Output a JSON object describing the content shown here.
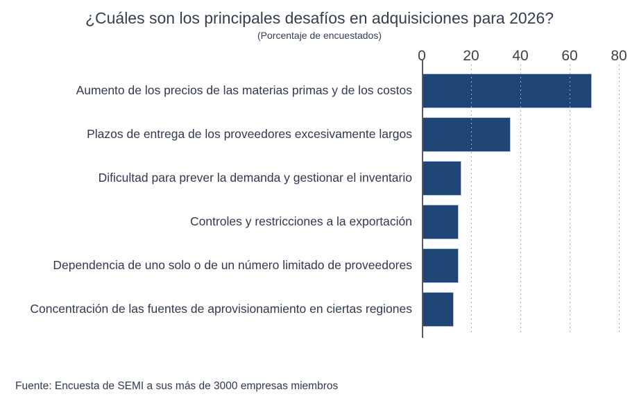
{
  "title": "¿Cuáles son los principales desafíos en adquisiciones para 2026?",
  "subtitle": "(Porcentaje de encuestados)",
  "source": "Fuente: Encuesta de SEMI a sus más de 3000 empresas miembros",
  "colors": {
    "bar_fill": "#1E4573",
    "bar_border": "#AEC6E8",
    "title_text": "#333F50",
    "label_text": "#2F3A4F",
    "tick_text": "#404040",
    "gridline": "#ABABAB",
    "axis_line": "#595959"
  },
  "chart_data": {
    "type": "bar",
    "orientation": "horizontal",
    "title": "¿Cuáles son los principales desafíos en adquisiciones para 2026?",
    "subtitle": "(Porcentaje de encuestados)",
    "xlabel": "",
    "ylabel": "",
    "categories": [
      "Aumento de los precios de las materias primas y de los costos",
      "Plazos de entrega de los proveedores excesivamente largos",
      "Dificultad para prever la demanda y gestionar el inventario",
      "Controles y restricciones a la exportación",
      "Dependencia de uno solo o de un número limitado de proveedores",
      "Concentración de las fuentes de aprovisionamiento en ciertas regiones"
    ],
    "values": [
      69,
      36,
      16,
      15,
      15,
      13
    ],
    "xlim": [
      0,
      80
    ],
    "x_ticks": [
      0,
      20,
      40,
      60,
      80
    ],
    "tick_position": "top",
    "grid": "dotted-vertical",
    "legend": "none"
  }
}
